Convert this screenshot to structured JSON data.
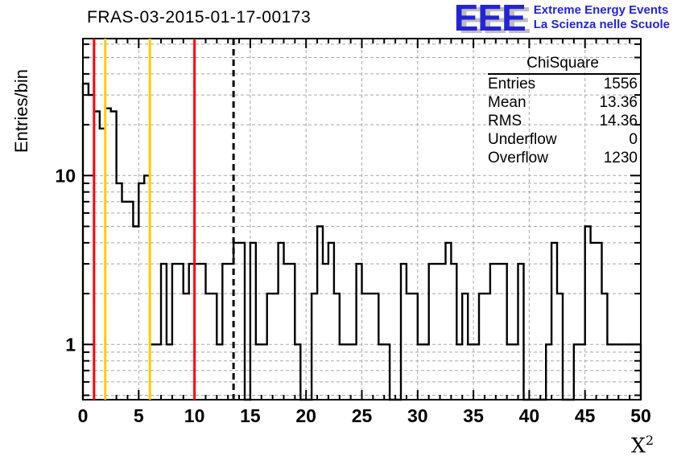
{
  "title": "FRAS-03-2015-01-17-00173",
  "logo": {
    "eee": "EEE",
    "line1": "Extreme Energy Events",
    "line2": "La Scienza nelle Scuole",
    "color": "#2424d6"
  },
  "stats": {
    "header": "ChiSquare",
    "rows": [
      {
        "label": "Entries",
        "value": "1556"
      },
      {
        "label": "Mean",
        "value": "13.36"
      },
      {
        "label": "RMS",
        "value": "14.36"
      },
      {
        "label": "Underflow",
        "value": "0"
      },
      {
        "label": "Overflow",
        "value": "1230"
      }
    ]
  },
  "axes": {
    "ylabel": "Entries/bin",
    "xlabel_base": "X",
    "xlabel_exponent": "2",
    "x_tick_labels": [
      "0",
      "5",
      "10",
      "15",
      "20",
      "25",
      "30",
      "35",
      "40",
      "45",
      "50"
    ],
    "y_tick_labels": [
      {
        "value": 1,
        "label": "1"
      },
      {
        "value": 10,
        "label": "10"
      }
    ]
  },
  "chart_data": {
    "type": "bar",
    "subtype": "step-histogram-log-y",
    "title": "FRAS-03-2015-01-17-00173",
    "xlabel": "X^2",
    "ylabel": "Entries/bin",
    "xlim": [
      0,
      50
    ],
    "ylim": [
      0.45,
      65
    ],
    "y_scale": "log",
    "grid": true,
    "legend_position": "none",
    "bin_start": 0,
    "bin_width": 0.5,
    "counts": [
      35,
      30,
      24,
      19,
      25,
      24,
      9,
      7,
      7,
      5,
      9,
      10,
      1,
      1,
      3,
      1,
      3,
      3,
      2,
      3,
      3,
      3,
      2,
      2,
      1,
      3,
      3,
      4,
      4,
      0,
      4,
      1,
      1,
      2,
      2,
      4,
      3,
      3,
      1,
      0,
      0,
      2,
      5,
      3,
      4,
      2,
      1,
      1,
      1,
      3,
      2,
      2,
      2,
      1,
      1,
      0,
      0,
      3,
      2,
      2,
      1,
      1,
      3,
      3,
      3,
      4,
      3,
      1,
      2,
      1,
      1,
      2,
      2,
      3,
      3,
      3,
      1,
      1,
      3,
      0,
      0,
      0,
      0,
      1,
      4,
      2,
      0,
      0,
      1,
      1,
      5,
      4,
      4,
      2,
      1,
      1,
      1,
      1,
      1,
      1
    ],
    "line_color": "#000000",
    "x_gridlines": [
      5,
      10,
      15,
      20,
      25,
      30,
      35,
      40,
      45
    ],
    "y_gridlines": [
      0.5,
      0.6,
      0.7,
      0.8,
      0.9,
      1,
      2,
      3,
      4,
      5,
      6,
      7,
      8,
      9,
      10,
      20,
      30,
      40,
      50,
      60
    ],
    "y_minor_ticks": [
      0.5,
      0.6,
      0.7,
      0.8,
      0.9,
      2,
      3,
      4,
      5,
      6,
      7,
      8,
      9,
      20,
      30,
      40,
      50,
      60
    ],
    "grid_color": "#a8a8a8",
    "overlay_lines": [
      {
        "name": "cut-line-red-low",
        "x": 1,
        "color": "#ff0000",
        "dash": ""
      },
      {
        "name": "cut-line-yellow-low",
        "x": 2,
        "color": "#ffcc00",
        "dash": ""
      },
      {
        "name": "cut-line-yellow-high",
        "x": 6,
        "color": "#ffcc00",
        "dash": ""
      },
      {
        "name": "cut-line-red-high",
        "x": 10,
        "color": "#ff0000",
        "dash": ""
      },
      {
        "name": "mean-line-dashed",
        "x": 13.5,
        "color": "#000000",
        "dash": "8 5"
      }
    ]
  }
}
